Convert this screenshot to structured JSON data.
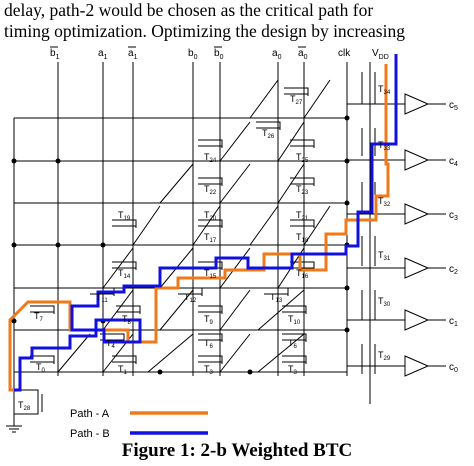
{
  "body_text": {
    "line1": "delay, path-2 would be chosen as the critical path for",
    "line2": "timing optimization. Optimizing the design by increasing"
  },
  "signals": {
    "b1_bar": "b",
    "b1_bar_sub": "1",
    "a1": "a",
    "a1_sub": "1",
    "a1_bar": "a",
    "a1_bar_sub": "1",
    "b0": "b",
    "b0_sub": "0",
    "b0_bar": "b",
    "b0_bar_sub": "0",
    "a0": "a",
    "a0_sub": "0",
    "a0_bar": "a",
    "a0_bar_sub": "0",
    "clk": "clk",
    "vdd": "V",
    "vdd_sub": "DD"
  },
  "transistors": {
    "t0": "T",
    "t0_sub": "0",
    "t1": "T",
    "t1_sub": "1",
    "t3": "T",
    "t3_sub": "3",
    "t4": "T",
    "t4_sub": "4",
    "t6": "T",
    "t6_sub": "6",
    "t7": "T",
    "t7_sub": "7",
    "t8": "T",
    "t8_sub": "8",
    "t9": "T",
    "t9_sub": "9",
    "t10": "T",
    "t10_sub": "10",
    "t11": "T",
    "t11_sub": "11",
    "t12": "T",
    "t12_sub": "12",
    "t13": "T",
    "t13_sub": "13",
    "t14": "T",
    "t14_sub": "14",
    "t15": "T",
    "t15_sub": "15",
    "t16": "T",
    "t16_sub": "16",
    "t17": "T",
    "t17_sub": "17",
    "t18": "T",
    "t18_sub": "18",
    "t19": "T",
    "t19_sub": "19",
    "t20": "T",
    "t20_sub": "20",
    "t21": "T",
    "t21_sub": "21",
    "t22": "T",
    "t22_sub": "22",
    "t23": "T",
    "t23_sub": "23",
    "t24": "T",
    "t24_sub": "24",
    "t25": "T",
    "t25_sub": "25",
    "t26": "T",
    "t26_sub": "26",
    "t27": "T",
    "t27_sub": "27",
    "t28": "T",
    "t28_sub": "28",
    "t29": "T",
    "t29_sub": "29",
    "t30": "T",
    "t30_sub": "30",
    "t31": "T",
    "t31_sub": "31",
    "t32": "T",
    "t32_sub": "32",
    "t33": "T",
    "t33_sub": "33",
    "t34": "T",
    "t34_sub": "34"
  },
  "outputs": {
    "c5": "c",
    "c5_sub": "5",
    "c4": "c",
    "c4_sub": "4",
    "c3": "c",
    "c3_sub": "3",
    "c2": "c",
    "c2_sub": "2",
    "c1": "c",
    "c1_sub": "1",
    "c0": "c",
    "c0_sub": "0"
  },
  "legend": {
    "path_a": "Path - A",
    "path_b": "Path - B",
    "path_a_color": "#f07a1a",
    "path_b_color": "#1010e0"
  },
  "caption": "Figure 1: 2-b Weighted BTC"
}
